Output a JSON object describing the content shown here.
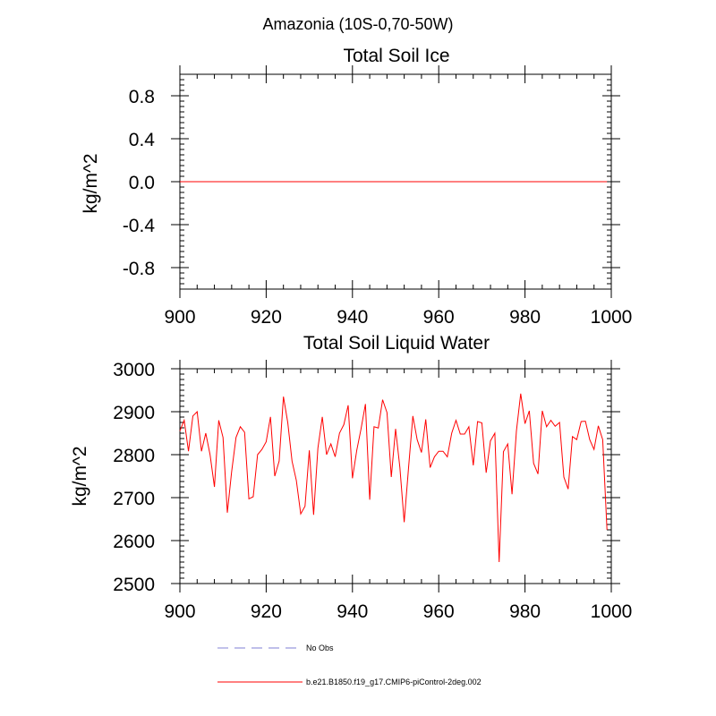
{
  "page_title": "Amazonia (10S-0,70-50W)",
  "colors": {
    "model_line": "#ff0000",
    "obs_line": "#9999dd",
    "axis": "#000000"
  },
  "legend": {
    "obs_label": "No Obs",
    "model_label": "b.e21.B1850.f19_g17.CMIP6-piControl-2deg.002"
  },
  "chart_data": [
    {
      "type": "line",
      "title": "Total Soil Ice",
      "xlabel": "",
      "ylabel": "kg/m^2",
      "xlim": [
        900,
        1000
      ],
      "ylim": [
        -1.0,
        1.0
      ],
      "xticks": [
        900,
        920,
        940,
        960,
        980,
        1000
      ],
      "yticks": [
        -0.8,
        -0.4,
        0.0,
        0.4,
        0.8
      ],
      "ytick_labels": [
        "-0.8",
        "-0.4",
        "0.0",
        "0.4",
        "0.8"
      ],
      "grid": false,
      "series": [
        {
          "name": "b.e21.B1850.f19_g17.CMIP6-piControl-2deg.002",
          "x": [
            900,
            999
          ],
          "values": [
            0.0,
            0.0
          ]
        }
      ]
    },
    {
      "type": "line",
      "title": "Total Soil Liquid Water",
      "xlabel": "",
      "ylabel": "kg/m^2",
      "xlim": [
        900,
        1000
      ],
      "ylim": [
        2500,
        3000
      ],
      "xticks": [
        900,
        920,
        940,
        960,
        980,
        1000
      ],
      "yticks": [
        2500,
        2600,
        2700,
        2800,
        2900,
        3000
      ],
      "ytick_labels": [
        "2500",
        "2600",
        "2700",
        "2800",
        "2900",
        "3000"
      ],
      "grid": false,
      "series": [
        {
          "name": "b.e21.B1850.f19_g17.CMIP6-piControl-2deg.002",
          "x_start": 900,
          "x_step": 1,
          "values": [
            2855,
            2880,
            2808,
            2890,
            2900,
            2808,
            2850,
            2800,
            2725,
            2880,
            2840,
            2665,
            2760,
            2840,
            2865,
            2852,
            2697,
            2702,
            2800,
            2812,
            2830,
            2888,
            2750,
            2785,
            2935,
            2875,
            2785,
            2740,
            2662,
            2680,
            2810,
            2660,
            2815,
            2888,
            2800,
            2825,
            2795,
            2850,
            2870,
            2915,
            2745,
            2810,
            2860,
            2918,
            2695,
            2865,
            2862,
            2928,
            2898,
            2748,
            2860,
            2770,
            2643,
            2770,
            2890,
            2835,
            2805,
            2882,
            2770,
            2795,
            2808,
            2808,
            2795,
            2850,
            2880,
            2848,
            2848,
            2865,
            2775,
            2877,
            2874,
            2758,
            2832,
            2850,
            2550,
            2807,
            2825,
            2708,
            2855,
            2942,
            2872,
            2902,
            2780,
            2755,
            2902,
            2865,
            2880,
            2866,
            2875,
            2748,
            2720,
            2842,
            2835,
            2877,
            2878,
            2835,
            2812,
            2867,
            2835,
            2625
          ]
        }
      ]
    }
  ]
}
